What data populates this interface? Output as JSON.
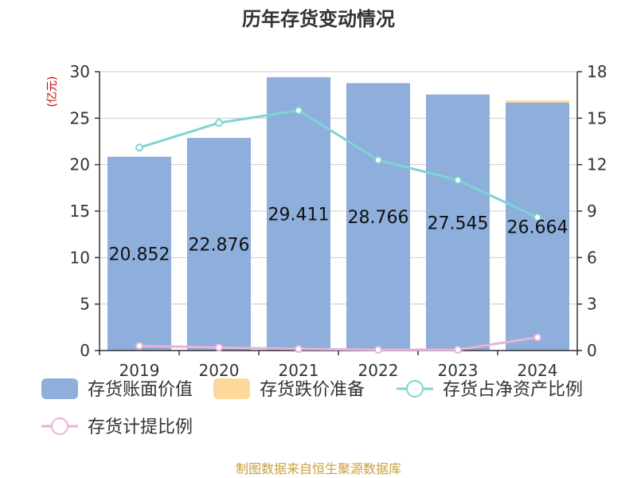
{
  "chart_data": {
    "type": "bar",
    "title": "历年存货变动情况",
    "unit_left": "(亿元)",
    "unit_right": "%",
    "categories": [
      "2019",
      "2020",
      "2021",
      "2022",
      "2023",
      "2024"
    ],
    "series": [
      {
        "name": "存货账面价值",
        "type": "bar",
        "axis": "left",
        "color": "#8eaedb",
        "values": [
          20.852,
          22.876,
          29.411,
          28.766,
          27.545,
          26.664
        ]
      },
      {
        "name": "存货跌价准备",
        "type": "bar",
        "axis": "left",
        "color": "#fcd89b",
        "values": [
          0.0,
          0.0,
          0.0,
          0.0,
          0.0,
          0.24
        ]
      },
      {
        "name": "存货占净资产比例",
        "type": "line",
        "axis": "right",
        "color": "#7fd3d3",
        "values": [
          13.1,
          14.7,
          15.5,
          12.3,
          11.0,
          8.6
        ]
      },
      {
        "name": "存货计提比例",
        "type": "line",
        "axis": "right",
        "color": "#e6b3d9",
        "values": [
          0.3,
          0.2,
          0.1,
          0.05,
          0.05,
          0.85
        ]
      }
    ],
    "bar_labels": [
      "20.852",
      "22.876",
      "29.411",
      "28.766",
      "27.545",
      "26.664"
    ],
    "y_left": {
      "min": 0,
      "max": 30,
      "ticks": [
        0,
        5,
        10,
        15,
        20,
        25,
        30
      ]
    },
    "y_right": {
      "min": 0,
      "max": 18,
      "ticks": [
        0,
        3,
        6,
        9,
        12,
        15,
        18
      ]
    },
    "grid": true,
    "legend_position": "bottom"
  },
  "source": "制图数据来自恒生聚源数据库"
}
